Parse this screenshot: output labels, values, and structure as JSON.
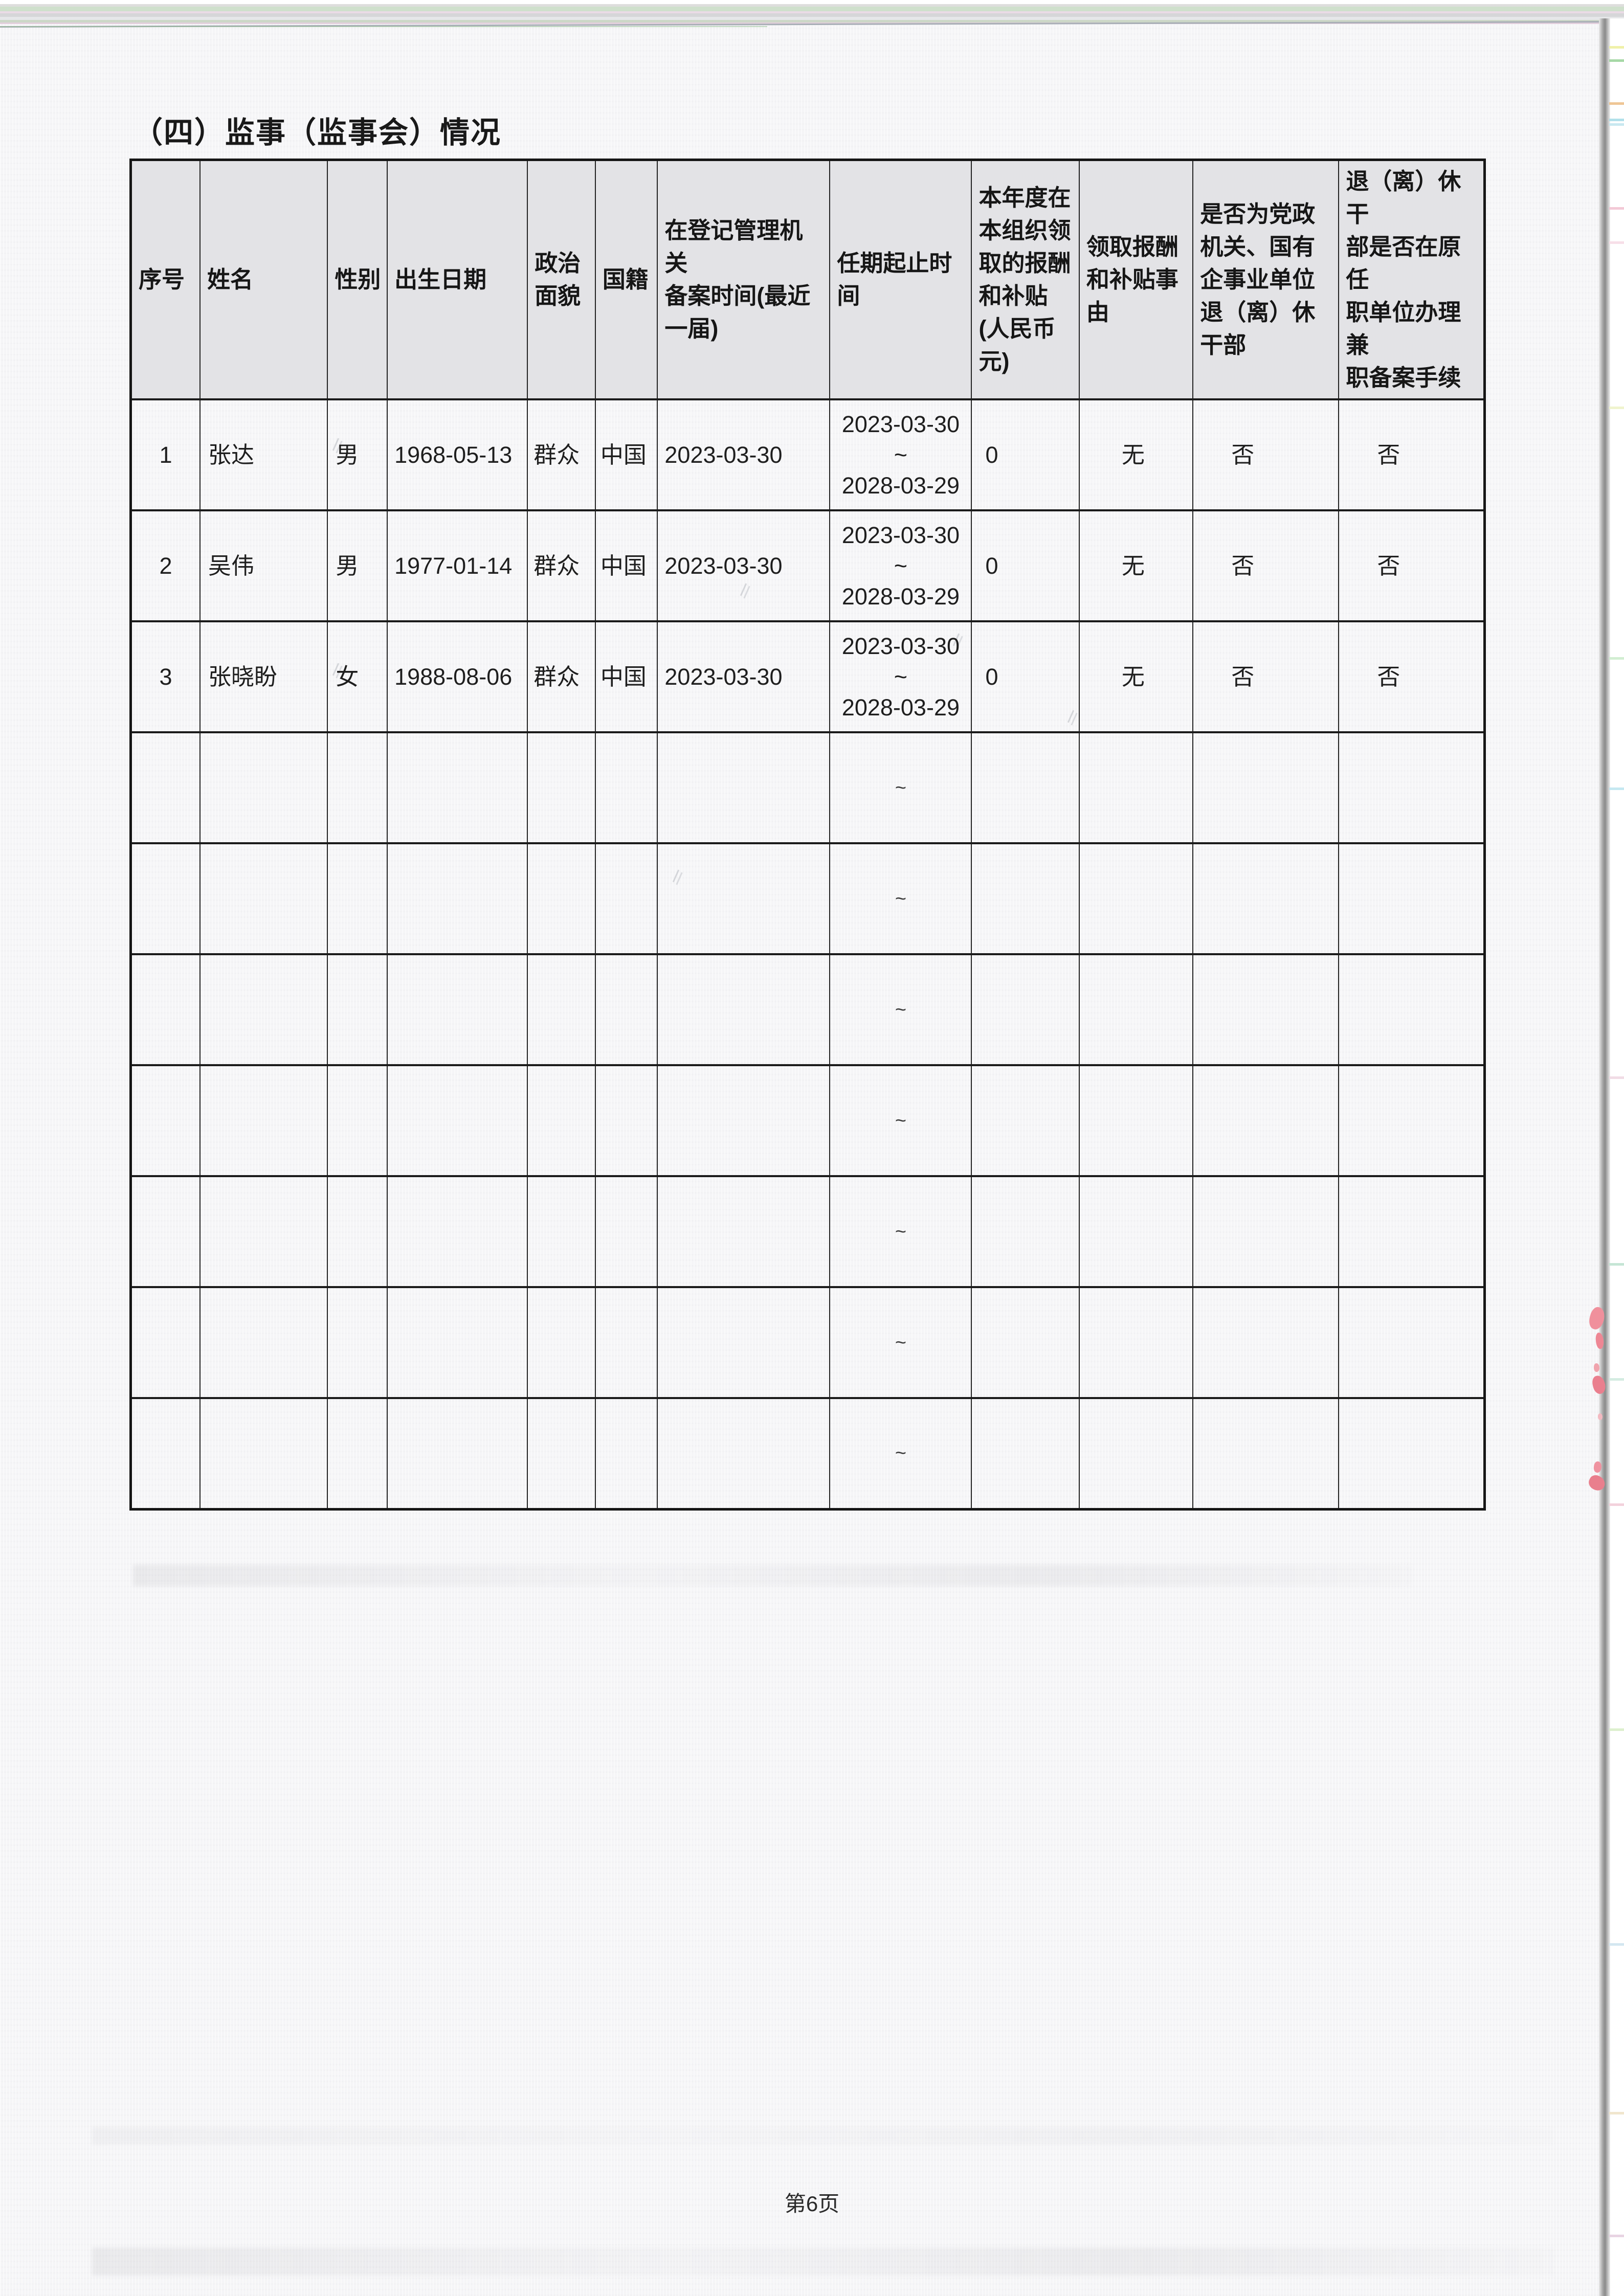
{
  "page": {
    "section_title": "（四）监事（监事会）情况",
    "page_number_label": "第6页"
  },
  "supervisors_table": {
    "columns": [
      {
        "key": "index",
        "label": "序号",
        "label_lines": [
          "序号"
        ]
      },
      {
        "key": "name",
        "label": "姓名",
        "label_lines": [
          "姓名"
        ]
      },
      {
        "key": "gender",
        "label": "性别",
        "label_lines": [
          "性别"
        ]
      },
      {
        "key": "birth_date",
        "label": "出生日期",
        "label_lines": [
          "出生日期"
        ]
      },
      {
        "key": "political_status",
        "label": "政治面貌",
        "label_lines": [
          "政治",
          "面貌"
        ]
      },
      {
        "key": "nationality",
        "label": "国籍",
        "label_lines": [
          "国籍"
        ]
      },
      {
        "key": "filing_time",
        "label": "在登记管理机关备案时间(最近一届)",
        "label_lines": [
          "在登记管理机关",
          "备案时间(最近",
          "一届)"
        ]
      },
      {
        "key": "term",
        "label": "任期起止时间",
        "label_lines": [
          "任期起止时",
          "间"
        ]
      },
      {
        "key": "annual_pay",
        "label": "本年度在本组织领取的报酬和补贴(人民币元)",
        "label_lines": [
          "本年度在",
          "本组织领",
          "取的报酬",
          "和补贴",
          "(人民币",
          "元)"
        ]
      },
      {
        "key": "pay_reason",
        "label": "领取报酬和补贴事由",
        "label_lines": [
          "领取报酬",
          "和补贴事",
          "由"
        ]
      },
      {
        "key": "is_retired_cadre",
        "label": "是否为党政机关、国有企事业单位退（离）休干部",
        "label_lines": [
          "是否为党政",
          "机关、国有",
          "企事业单位",
          "退（离）休",
          "干部"
        ]
      },
      {
        "key": "retired_filing",
        "label": "退（离）休干部是否在原任职单位办理兼职备案手续",
        "label_lines": [
          "退（离）休干",
          "部是否在原任",
          "职单位办理兼",
          "职备案手续"
        ]
      }
    ],
    "rows": [
      {
        "index": "1",
        "name": "张达",
        "gender": "男",
        "birth_date": "1968-05-13",
        "political_status": "群众",
        "nationality": "中国",
        "filing_time": "2023-03-30",
        "term_start": "2023-03-30",
        "term_sep": "~",
        "term_end": "2028-03-29",
        "annual_pay": "0",
        "pay_reason": "无",
        "is_retired_cadre": "否",
        "retired_filing": "否"
      },
      {
        "index": "2",
        "name": "吴伟",
        "gender": "男",
        "birth_date": "1977-01-14",
        "political_status": "群众",
        "nationality": "中国",
        "filing_time": "2023-03-30",
        "term_start": "2023-03-30",
        "term_sep": "~",
        "term_end": "2028-03-29",
        "annual_pay": "0",
        "pay_reason": "无",
        "is_retired_cadre": "否",
        "retired_filing": "否"
      },
      {
        "index": "3",
        "name": "张晓盼",
        "gender": "女",
        "birth_date": "1988-08-06",
        "political_status": "群众",
        "nationality": "中国",
        "filing_time": "2023-03-30",
        "term_start": "2023-03-30",
        "term_sep": "~",
        "term_end": "2028-03-29",
        "annual_pay": "0",
        "pay_reason": "无",
        "is_retired_cadre": "否",
        "retired_filing": "否"
      }
    ],
    "empty_row_count": 7,
    "empty_row_term_mark": "~"
  },
  "colors": {
    "header_bg": "#e3e3e6",
    "grid_line": "#232323",
    "page_bg": "#f5f5f7"
  }
}
